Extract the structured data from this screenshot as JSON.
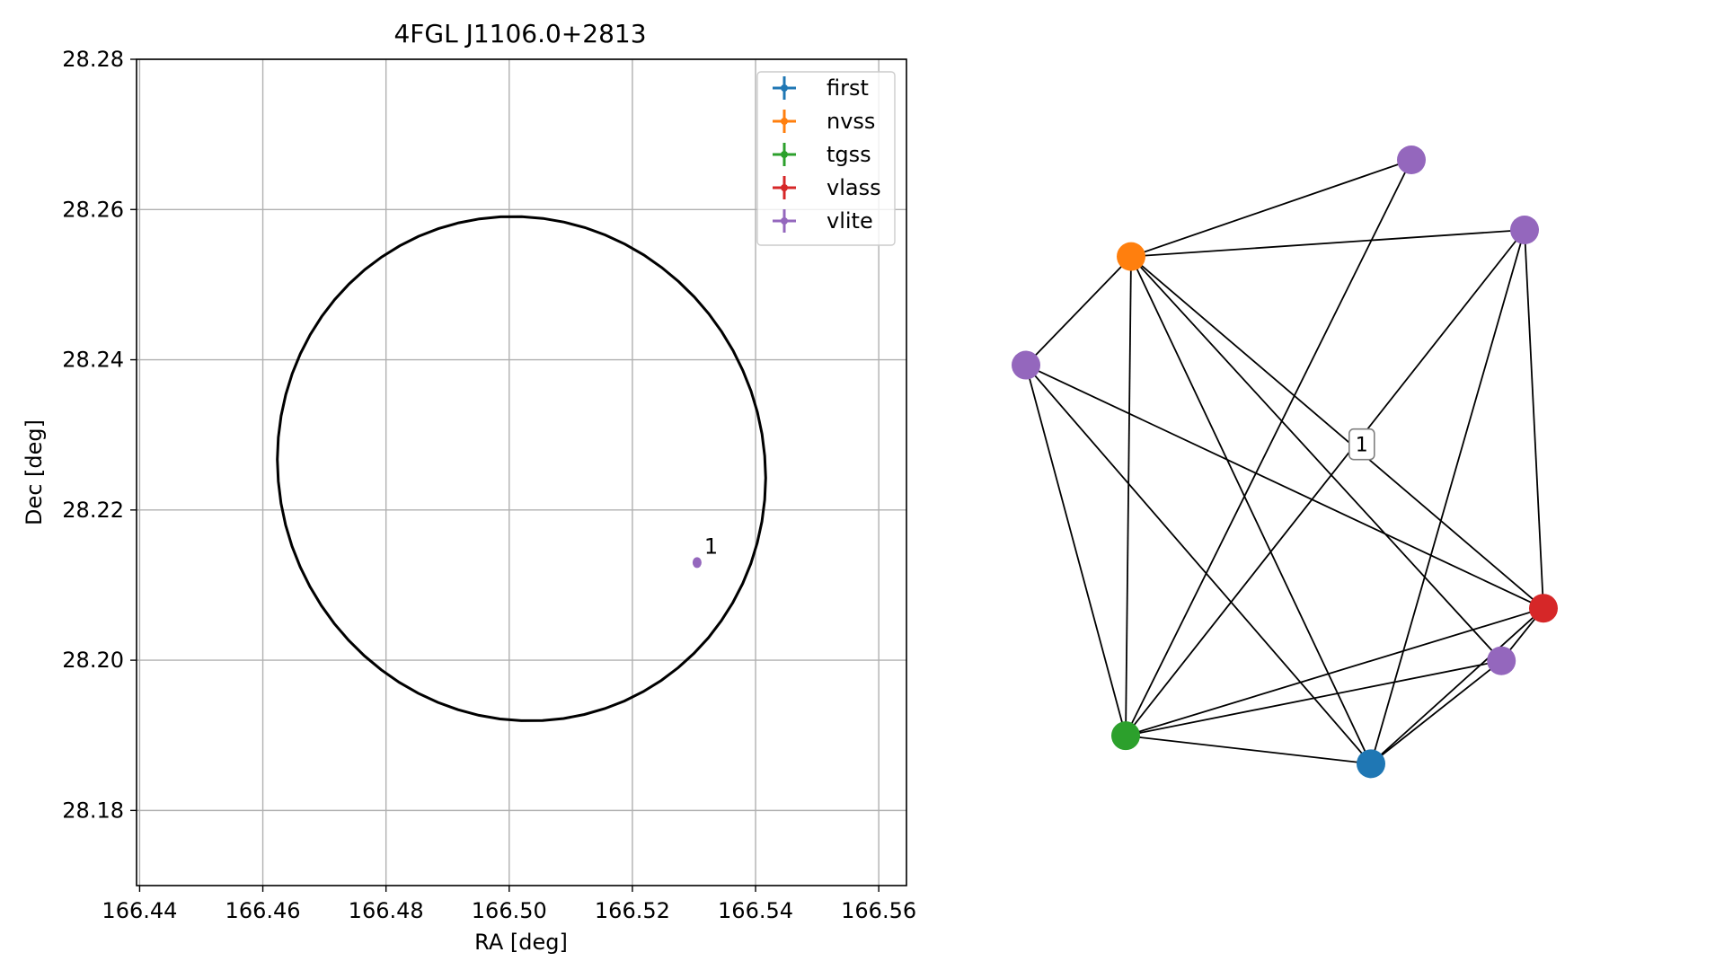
{
  "chart_data": [
    {
      "type": "scatter",
      "title": "4FGL J1106.0+2813",
      "xlabel": "RA [deg]",
      "ylabel": "Dec [deg]",
      "xlim": [
        166.4395,
        166.5645
      ],
      "ylim": [
        28.17,
        28.28
      ],
      "xticks": [
        166.44,
        166.46,
        166.48,
        166.5,
        166.52,
        166.54,
        166.56
      ],
      "xtick_labels": [
        "166.44",
        "166.46",
        "166.48",
        "166.50",
        "166.52",
        "166.54",
        "166.56"
      ],
      "yticks": [
        28.18,
        28.2,
        28.22,
        28.24,
        28.26,
        28.28
      ],
      "ytick_labels": [
        "28.18",
        "28.20",
        "28.22",
        "28.24",
        "28.26",
        "28.28"
      ],
      "grid": true,
      "legend_position": "top-right",
      "ellipse": {
        "center_ra": 166.502,
        "center_dec": 28.2255,
        "semi_axis_ra": 0.0397,
        "semi_axis_dec": 0.0335,
        "tilt_deg": -6,
        "color": "#000000"
      },
      "series": [
        {
          "name": "first",
          "color": "#1f77b4",
          "points": []
        },
        {
          "name": "nvss",
          "color": "#ff7f0e",
          "points": []
        },
        {
          "name": "tgss",
          "color": "#2ca02c",
          "points": []
        },
        {
          "name": "vlass",
          "color": "#d62728",
          "points": []
        },
        {
          "name": "vlite",
          "color": "#9467bd",
          "points": [
            {
              "ra": 166.5305,
              "dec": 28.213,
              "label": "1"
            }
          ]
        }
      ]
    },
    {
      "type": "network",
      "nodes": [
        {
          "id": "v1",
          "series": "vlite",
          "color": "#9467bd",
          "x": 0.735,
          "y": 0.9
        },
        {
          "id": "v2",
          "series": "vlite",
          "color": "#9467bd",
          "x": 0.945,
          "y": 0.8
        },
        {
          "id": "n",
          "series": "nvss",
          "color": "#ff7f0e",
          "x": 0.215,
          "y": 0.762
        },
        {
          "id": "v3",
          "series": "vlite",
          "color": "#9467bd",
          "x": 0.02,
          "y": 0.607
        },
        {
          "id": "r",
          "series": "vlass",
          "color": "#d62728",
          "x": 0.98,
          "y": 0.26
        },
        {
          "id": "v4",
          "series": "vlite",
          "color": "#9467bd",
          "x": 0.902,
          "y": 0.185
        },
        {
          "id": "g",
          "series": "tgss",
          "color": "#2ca02c",
          "x": 0.205,
          "y": 0.078
        },
        {
          "id": "b",
          "series": "first",
          "color": "#1f77b4",
          "x": 0.66,
          "y": 0.038
        }
      ],
      "edges": [
        [
          "n",
          "v1"
        ],
        [
          "n",
          "v2"
        ],
        [
          "n",
          "v3"
        ],
        [
          "n",
          "g"
        ],
        [
          "n",
          "b"
        ],
        [
          "n",
          "r"
        ],
        [
          "n",
          "v4"
        ],
        [
          "v1",
          "g"
        ],
        [
          "v2",
          "g"
        ],
        [
          "v2",
          "r"
        ],
        [
          "v2",
          "b"
        ],
        [
          "v3",
          "g"
        ],
        [
          "v3",
          "b"
        ],
        [
          "v3",
          "r"
        ],
        [
          "g",
          "r"
        ],
        [
          "g",
          "v4"
        ],
        [
          "g",
          "b"
        ],
        [
          "b",
          "r"
        ],
        [
          "b",
          "v4"
        ],
        [
          "r",
          "v4"
        ]
      ],
      "edge_label": {
        "text": "1",
        "x": 0.643,
        "y": 0.494
      }
    }
  ]
}
